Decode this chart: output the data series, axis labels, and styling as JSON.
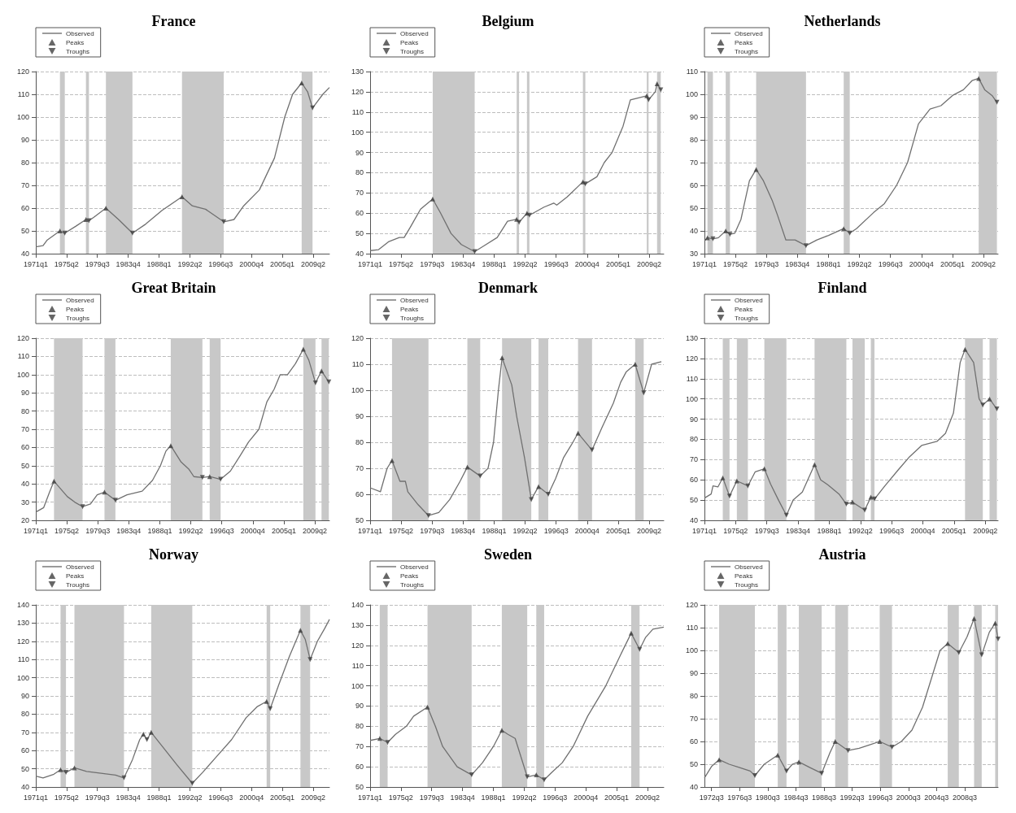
{
  "chart_data": [
    {
      "type": "line",
      "title": "France",
      "xlim": [
        "1971-01",
        "2011-07"
      ],
      "xticks": [
        {
          "value": "1971-01",
          "label": "1971q1"
        },
        {
          "value": "1975-04",
          "label": "1975q2"
        },
        {
          "value": "1979-07",
          "label": "1979q3"
        },
        {
          "value": "1983-10",
          "label": "1983q4"
        },
        {
          "value": "1988-01",
          "label": "1988q1"
        },
        {
          "value": "1992-04",
          "label": "1992q2"
        },
        {
          "value": "1996-07",
          "label": "1996q3"
        },
        {
          "value": "2000-10",
          "label": "2000q4"
        },
        {
          "value": "2005-01",
          "label": "2005q1"
        },
        {
          "value": "2009-04",
          "label": "2009q2"
        }
      ],
      "ylim": [
        40,
        120
      ],
      "yticks": [
        40,
        50,
        60,
        70,
        80,
        90,
        100,
        110,
        120
      ],
      "grid": "y",
      "legend": "top left",
      "bands": [
        {
          "axis": "x",
          "from": "1974-05",
          "to": "1975-01",
          "color": "#c8c8c8"
        },
        {
          "axis": "x",
          "from": "1977-12",
          "to": "1978-05",
          "color": "#c8c8c8"
        },
        {
          "axis": "x",
          "from": "1980-09",
          "to": "1984-05",
          "color": "#c8c8c8"
        },
        {
          "axis": "x",
          "from": "1991-03",
          "to": "1996-12",
          "color": "#c8c8c8"
        },
        {
          "axis": "x",
          "from": "2007-09",
          "to": "2009-03",
          "color": "#c8c8c8"
        }
      ],
      "series": [
        {
          "name": "Observed",
          "marker": "none",
          "color": "#707070",
          "x": [
            "1971-01",
            "1972-01",
            "1972-08",
            "1974-05",
            "1975-01",
            "1976-07",
            "1977-12",
            "1978-05",
            "1979-01",
            "1980-09",
            "1982-06",
            "1984-05",
            "1986-03",
            "1988-06",
            "1991-03",
            "1992-08",
            "1994-06",
            "1996-12",
            "1998-05",
            "1999-09",
            "2001-11",
            "2003-12",
            "2005-05",
            "2006-06",
            "2007-09",
            "2008-07",
            "2009-03",
            "2010-08",
            "2011-07"
          ],
          "values": [
            43,
            43.5,
            46,
            50,
            49,
            52,
            55,
            54.5,
            56,
            60,
            55,
            49,
            53,
            59,
            65,
            61,
            59.5,
            54,
            55,
            61,
            68,
            82,
            100,
            110,
            115,
            111,
            104,
            110,
            113
          ]
        },
        {
          "name": "Peaks",
          "type": "scatter",
          "marker": "triangle",
          "color": "#404040",
          "x": [
            "1974-05",
            "1977-12",
            "1980-09",
            "1991-03",
            "2007-09"
          ],
          "values": [
            50,
            55,
            60,
            65,
            115
          ]
        },
        {
          "name": "Troughs",
          "type": "scatter",
          "marker": "triangle-down",
          "color": "#404040",
          "x": [
            "1975-01",
            "1978-05",
            "1984-05",
            "1996-12",
            "2009-03"
          ],
          "values": [
            49,
            54.5,
            49,
            54,
            104
          ]
        }
      ]
    },
    {
      "type": "line",
      "title": "Belgium",
      "xlim": [
        "1971-01",
        "2011-04"
      ],
      "xticks": [
        {
          "value": "1971-01",
          "label": "1971q1"
        },
        {
          "value": "1975-04",
          "label": "1975q2"
        },
        {
          "value": "1979-07",
          "label": "1979q3"
        },
        {
          "value": "1983-10",
          "label": "1983q4"
        },
        {
          "value": "1988-01",
          "label": "1988q1"
        },
        {
          "value": "1992-04",
          "label": "1992q2"
        },
        {
          "value": "1996-07",
          "label": "1996q3"
        },
        {
          "value": "2000-10",
          "label": "2000q4"
        },
        {
          "value": "2005-01",
          "label": "2005q1"
        },
        {
          "value": "2009-04",
          "label": "2009q2"
        }
      ],
      "ylim": [
        40,
        130
      ],
      "yticks": [
        40,
        50,
        60,
        70,
        80,
        90,
        100,
        110,
        120,
        130
      ],
      "grid": "y",
      "legend": "top left",
      "bands": [
        {
          "axis": "x",
          "from": "1979-08",
          "to": "1985-05",
          "color": "#c8c8c8"
        },
        {
          "axis": "x",
          "from": "1991-02",
          "to": "1991-06",
          "color": "#c8c8c8"
        },
        {
          "axis": "x",
          "from": "1992-07",
          "to": "1992-11",
          "color": "#c8c8c8"
        },
        {
          "axis": "x",
          "from": "2000-03",
          "to": "2000-07",
          "color": "#c8c8c8"
        },
        {
          "axis": "x",
          "from": "2008-12",
          "to": "2009-03",
          "color": "#c8c8c8"
        },
        {
          "axis": "x",
          "from": "2010-05",
          "to": "2010-11",
          "color": "#c8c8c8"
        }
      ],
      "series": [
        {
          "name": "Observed",
          "marker": "none",
          "color": "#707070",
          "x": [
            "1971-01",
            "1972-03",
            "1973-08",
            "1975-01",
            "1975-09",
            "1976-07",
            "1977-12",
            "1979-08",
            "1980-09",
            "1982-02",
            "1983-07",
            "1985-05",
            "1986-09",
            "1988-06",
            "1989-11",
            "1991-02",
            "1991-06",
            "1992-07",
            "1992-11",
            "1994-11",
            "1996-03",
            "1996-08",
            "1998-01",
            "2000-03",
            "2000-07",
            "2002-02",
            "2003-02",
            "2004-03",
            "2005-09",
            "2006-09",
            "2008-12",
            "2009-03",
            "2010-02",
            "2010-05",
            "2010-11"
          ],
          "values": [
            41.5,
            42,
            46,
            48,
            48,
            53,
            62,
            67,
            60,
            50,
            44.5,
            41,
            44,
            48,
            56,
            57,
            55.5,
            60,
            59,
            63,
            65,
            64,
            68,
            75.5,
            74.5,
            78,
            85,
            90,
            103,
            116,
            118,
            116,
            120,
            124,
            121
          ]
        },
        {
          "name": "Peaks",
          "type": "scatter",
          "marker": "triangle",
          "color": "#404040",
          "x": [
            "1979-08",
            "1991-02",
            "1992-07",
            "2000-03",
            "2008-12",
            "2010-05"
          ],
          "values": [
            67,
            57,
            60,
            75.5,
            118,
            124
          ]
        },
        {
          "name": "Troughs",
          "type": "scatter",
          "marker": "triangle-down",
          "color": "#404040",
          "x": [
            "1985-05",
            "1991-06",
            "1992-11",
            "2000-07",
            "2009-03",
            "2010-11"
          ],
          "values": [
            41,
            55.5,
            59,
            74.5,
            116,
            121
          ]
        }
      ]
    },
    {
      "type": "line",
      "title": "Netherlands",
      "xlim": [
        "1971-01",
        "2011-04"
      ],
      "xticks": [
        {
          "value": "1971-01",
          "label": "1971q1"
        },
        {
          "value": "1975-04",
          "label": "1975q2"
        },
        {
          "value": "1979-07",
          "label": "1979q3"
        },
        {
          "value": "1983-10",
          "label": "1983q4"
        },
        {
          "value": "1988-01",
          "label": "1988q1"
        },
        {
          "value": "1992-04",
          "label": "1992q2"
        },
        {
          "value": "1996-07",
          "label": "1996q3"
        },
        {
          "value": "2000-10",
          "label": "2000q4"
        },
        {
          "value": "2005-01",
          "label": "2005q1"
        },
        {
          "value": "2009-04",
          "label": "2009q2"
        }
      ],
      "ylim": [
        30,
        110
      ],
      "yticks": [
        30,
        40,
        50,
        60,
        70,
        80,
        90,
        100,
        110
      ],
      "grid": "y",
      "legend": "top left",
      "bands": [
        {
          "axis": "x",
          "from": "1971-06",
          "to": "1972-03",
          "color": "#c8c8c8"
        },
        {
          "axis": "x",
          "from": "1973-12",
          "to": "1974-07",
          "color": "#c8c8c8"
        },
        {
          "axis": "x",
          "from": "1978-02",
          "to": "1984-12",
          "color": "#c8c8c8"
        },
        {
          "axis": "x",
          "from": "1990-02",
          "to": "1990-12",
          "color": "#c8c8c8"
        },
        {
          "axis": "x",
          "from": "2008-08",
          "to": "2011-02",
          "color": "#c8c8c8"
        }
      ],
      "series": [
        {
          "name": "Observed",
          "marker": "none",
          "color": "#707070",
          "x": [
            "1971-01",
            "1971-06",
            "1972-03",
            "1972-12",
            "1973-12",
            "1974-07",
            "1975-03",
            "1976-01",
            "1977-03",
            "1978-02",
            "1979-02",
            "1980-05",
            "1981-01",
            "1982-03",
            "1983-06",
            "1984-12",
            "1986-06",
            "1988-01",
            "1990-02",
            "1990-12",
            "1991-11",
            "1994-03",
            "1995-09",
            "1997-05",
            "1998-11",
            "2000-05",
            "2001-12",
            "2003-06",
            "2005-01",
            "2006-07",
            "2007-09",
            "2008-08",
            "2009-06",
            "2010-06",
            "2011-02"
          ],
          "values": [
            35.5,
            37,
            36.5,
            37,
            40,
            38.5,
            39,
            45,
            62,
            67,
            62,
            53,
            47,
            36,
            36,
            33.5,
            36,
            38,
            41,
            39,
            41,
            48,
            52,
            60,
            70,
            87,
            93.5,
            95,
            99.5,
            102,
            106,
            107,
            102,
            99.5,
            96.5
          ]
        },
        {
          "name": "Peaks",
          "type": "scatter",
          "marker": "triangle",
          "color": "#404040",
          "x": [
            "1971-06",
            "1973-12",
            "1978-02",
            "1990-02",
            "2008-08"
          ],
          "values": [
            37,
            40,
            67,
            41,
            107
          ]
        },
        {
          "name": "Troughs",
          "type": "scatter",
          "marker": "triangle-down",
          "color": "#404040",
          "x": [
            "1972-03",
            "1974-07",
            "1984-12",
            "1990-12",
            "2011-02"
          ],
          "values": [
            36.5,
            38.5,
            33.5,
            39,
            96.5
          ]
        }
      ]
    },
    {
      "type": "line",
      "title": "Great Britain",
      "xlim": [
        "1971-01",
        "2011-04"
      ],
      "xticks": [
        {
          "value": "1971-01",
          "label": "1971q1"
        },
        {
          "value": "1975-04",
          "label": "1975q2"
        },
        {
          "value": "1979-07",
          "label": "1979q3"
        },
        {
          "value": "1983-10",
          "label": "1983q4"
        },
        {
          "value": "1988-01",
          "label": "1988q1"
        },
        {
          "value": "1992-04",
          "label": "1992q2"
        },
        {
          "value": "1996-07",
          "label": "1996q3"
        },
        {
          "value": "2000-10",
          "label": "2000q4"
        },
        {
          "value": "2005-01",
          "label": "2005q1"
        },
        {
          "value": "2009-04",
          "label": "2009q2"
        }
      ],
      "ylim": [
        20,
        120
      ],
      "yticks": [
        20,
        30,
        40,
        50,
        60,
        70,
        80,
        90,
        100,
        110,
        120
      ],
      "grid": "y",
      "legend": "top left",
      "bands": [
        {
          "axis": "x",
          "from": "1973-07",
          "to": "1977-06",
          "color": "#c8c8c8"
        },
        {
          "axis": "x",
          "from": "1980-06",
          "to": "1981-12",
          "color": "#c8c8c8"
        },
        {
          "axis": "x",
          "from": "1989-07",
          "to": "1993-11",
          "color": "#c8c8c8"
        },
        {
          "axis": "x",
          "from": "1994-11",
          "to": "1996-05",
          "color": "#c8c8c8"
        },
        {
          "axis": "x",
          "from": "2007-09",
          "to": "2009-05",
          "color": "#c8c8c8"
        },
        {
          "axis": "x",
          "from": "2010-03",
          "to": "2011-03",
          "color": "#c8c8c8"
        }
      ],
      "series": [
        {
          "name": "Observed",
          "marker": "none",
          "color": "#707070",
          "x": [
            "1971-01",
            "1972-02",
            "1972-11",
            "1973-07",
            "1975-05",
            "1976-05",
            "1977-06",
            "1978-07",
            "1979-06",
            "1980-06",
            "1981-12",
            "1983-07",
            "1985-08",
            "1987-01",
            "1988-02",
            "1988-11",
            "1989-07",
            "1990-12",
            "1992-01",
            "1992-09",
            "1993-11",
            "1994-11",
            "1996-05",
            "1997-09",
            "1999-02",
            "2000-03",
            "2001-08",
            "2002-09",
            "2003-09",
            "2004-07",
            "2005-07",
            "2006-08",
            "2007-09",
            "2008-06",
            "2009-05",
            "2010-03",
            "2011-03"
          ],
          "values": [
            24.5,
            27,
            35,
            41.5,
            33,
            30,
            27.5,
            29,
            34,
            35.5,
            31,
            34,
            36,
            42,
            50,
            58,
            61,
            52,
            48,
            44,
            43.5,
            44,
            42.5,
            47,
            56,
            63,
            70,
            85,
            92,
            100,
            100,
            106,
            114,
            108,
            95.5,
            102,
            96
          ]
        },
        {
          "name": "Peaks",
          "type": "scatter",
          "marker": "triangle",
          "color": "#404040",
          "x": [
            "1973-07",
            "1980-06",
            "1989-07",
            "1994-11",
            "2007-09",
            "2010-03"
          ],
          "values": [
            41.5,
            35.5,
            61,
            44,
            114,
            102
          ]
        },
        {
          "name": "Troughs",
          "type": "scatter",
          "marker": "triangle-down",
          "color": "#404040",
          "x": [
            "1977-06",
            "1981-12",
            "1993-11",
            "1996-05",
            "2009-05",
            "2011-03"
          ],
          "values": [
            27.5,
            31,
            43.5,
            42.5,
            95.5,
            96
          ]
        }
      ]
    },
    {
      "type": "line",
      "title": "Denmark",
      "xlim": [
        "1971-01",
        "2011-04"
      ],
      "xticks": [
        {
          "value": "1971-01",
          "label": "1971q1"
        },
        {
          "value": "1975-04",
          "label": "1975q2"
        },
        {
          "value": "1979-07",
          "label": "1979q3"
        },
        {
          "value": "1983-10",
          "label": "1983q4"
        },
        {
          "value": "1988-01",
          "label": "1988q1"
        },
        {
          "value": "1992-04",
          "label": "1992q2"
        },
        {
          "value": "1996-07",
          "label": "1996q3"
        },
        {
          "value": "2000-10",
          "label": "2000q4"
        },
        {
          "value": "2005-01",
          "label": "2005q1"
        },
        {
          "value": "2009-04",
          "label": "2009q2"
        }
      ],
      "ylim": [
        50,
        120
      ],
      "yticks": [
        50,
        60,
        70,
        80,
        90,
        100,
        110,
        120
      ],
      "grid": "y",
      "legend": "top left",
      "bands": [
        {
          "axis": "x",
          "from": "1974-01",
          "to": "1979-01",
          "color": "#c8c8c8"
        },
        {
          "axis": "x",
          "from": "1984-05",
          "to": "1986-02",
          "color": "#c8c8c8"
        },
        {
          "axis": "x",
          "from": "1989-02",
          "to": "1993-02",
          "color": "#c8c8c8"
        },
        {
          "axis": "x",
          "from": "1994-02",
          "to": "1995-06",
          "color": "#c8c8c8"
        },
        {
          "axis": "x",
          "from": "1999-07",
          "to": "2001-06",
          "color": "#c8c8c8"
        },
        {
          "axis": "x",
          "from": "2007-05",
          "to": "2008-07",
          "color": "#c8c8c8"
        }
      ],
      "series": [
        {
          "name": "Observed",
          "marker": "none",
          "color": "#707070",
          "x": [
            "1971-01",
            "1972-06",
            "1973-05",
            "1974-01",
            "1975-02",
            "1975-11",
            "1976-03",
            "1977-08",
            "1979-01",
            "1980-06",
            "1981-12",
            "1983-05",
            "1984-05",
            "1986-02",
            "1987-03",
            "1987-12",
            "1988-08",
            "1989-02",
            "1990-06",
            "1991-02",
            "1992-03",
            "1993-02",
            "1994-02",
            "1995-06",
            "1996-06",
            "1997-07",
            "1998-08",
            "1999-07",
            "2001-06",
            "2002-11",
            "2004-05",
            "2005-05",
            "2006-02",
            "2007-05",
            "2008-07",
            "2009-08",
            "2010-12"
          ],
          "values": [
            62.5,
            61,
            70,
            73,
            65,
            65,
            61,
            56,
            51.8,
            53,
            58,
            65,
            70.5,
            67,
            70,
            80,
            100,
            112.5,
            102,
            90,
            74,
            58,
            63,
            60,
            66,
            74,
            79,
            83.5,
            77,
            86,
            95,
            103,
            107,
            110,
            99,
            110,
            111
          ]
        },
        {
          "name": "Peaks",
          "type": "scatter",
          "marker": "triangle",
          "color": "#404040",
          "x": [
            "1974-01",
            "1984-05",
            "1989-02",
            "1994-02",
            "1999-07",
            "2007-05"
          ],
          "values": [
            73,
            70.5,
            112.5,
            63,
            83.5,
            110
          ]
        },
        {
          "name": "Troughs",
          "type": "scatter",
          "marker": "triangle-down",
          "color": "#404040",
          "x": [
            "1979-01",
            "1986-02",
            "1993-02",
            "1995-06",
            "2001-06",
            "2008-07"
          ],
          "values": [
            51.8,
            67,
            58,
            60,
            77,
            99
          ]
        }
      ]
    },
    {
      "type": "line",
      "title": "Finland",
      "xlim": [
        "1971-01",
        "2011-01"
      ],
      "xticks": [
        {
          "value": "1971-01",
          "label": "1971q1"
        },
        {
          "value": "1975-04",
          "label": "1975q2"
        },
        {
          "value": "1979-07",
          "label": "1979q3"
        },
        {
          "value": "1983-10",
          "label": "1983q4"
        },
        {
          "value": "1988-01",
          "label": "1988q1"
        },
        {
          "value": "1992-04",
          "label": "1992q2"
        },
        {
          "value": "1996-07",
          "label": "1996q3"
        },
        {
          "value": "2000-10",
          "label": "2000q4"
        },
        {
          "value": "2005-01",
          "label": "2005q1"
        },
        {
          "value": "2009-04",
          "label": "2009q2"
        }
      ],
      "ylim": [
        40,
        130
      ],
      "yticks": [
        40,
        50,
        60,
        70,
        80,
        90,
        100,
        110,
        120,
        130
      ],
      "grid": "y",
      "legend": "top left",
      "bands": [
        {
          "axis": "x",
          "from": "1973-07",
          "to": "1974-06",
          "color": "#c8c8c8"
        },
        {
          "axis": "x",
          "from": "1975-06",
          "to": "1976-12",
          "color": "#c8c8c8"
        },
        {
          "axis": "x",
          "from": "1979-03",
          "to": "1982-03",
          "color": "#c8c8c8"
        },
        {
          "axis": "x",
          "from": "1986-01",
          "to": "1990-05",
          "color": "#c8c8c8"
        },
        {
          "axis": "x",
          "from": "1991-03",
          "to": "1992-11",
          "color": "#c8c8c8"
        },
        {
          "axis": "x",
          "from": "1993-09",
          "to": "1994-03",
          "color": "#c8c8c8"
        },
        {
          "axis": "x",
          "from": "2006-07",
          "to": "2008-12",
          "color": "#c8c8c8"
        },
        {
          "axis": "x",
          "from": "2009-11",
          "to": "2010-11",
          "color": "#c8c8c8"
        }
      ],
      "series": [
        {
          "name": "Observed",
          "marker": "none",
          "color": "#707070",
          "x": [
            "1971-01",
            "1971-12",
            "1972-03",
            "1972-11",
            "1973-07",
            "1974-06",
            "1975-06",
            "1976-12",
            "1977-12",
            "1979-03",
            "1980-01",
            "1981-02",
            "1982-03",
            "1983-02",
            "1984-05",
            "1986-01",
            "1986-11",
            "1987-11",
            "1989-05",
            "1990-05",
            "1991-03",
            "1992-11",
            "1993-09",
            "1994-03",
            "1995-08",
            "1997-06",
            "1998-11",
            "2000-08",
            "2002-09",
            "2003-11",
            "2004-12",
            "2005-11",
            "2006-07",
            "2007-09",
            "2008-06",
            "2008-12",
            "2009-11",
            "2010-11"
          ],
          "values": [
            51,
            53,
            57,
            56.5,
            61,
            52,
            59.5,
            57,
            64,
            65.5,
            58,
            50,
            42.5,
            50,
            54,
            67.5,
            60,
            57.5,
            53,
            48,
            49,
            45,
            51.5,
            50.5,
            57,
            65,
            71,
            77,
            79,
            83,
            93,
            118,
            124.5,
            118,
            100,
            97,
            100,
            95
          ]
        },
        {
          "name": "Peaks",
          "type": "scatter",
          "marker": "triangle",
          "color": "#404040",
          "x": [
            "1973-07",
            "1975-06",
            "1979-03",
            "1986-01",
            "1991-03",
            "1993-09",
            "2006-07",
            "2009-11"
          ],
          "values": [
            61,
            59.5,
            65.5,
            67.5,
            49,
            51.5,
            124.5,
            100
          ]
        },
        {
          "name": "Troughs",
          "type": "scatter",
          "marker": "triangle-down",
          "color": "#404040",
          "x": [
            "1974-06",
            "1976-12",
            "1982-03",
            "1990-05",
            "1992-11",
            "1994-03",
            "2008-12",
            "2010-11"
          ],
          "values": [
            52,
            57,
            42.5,
            48,
            45,
            50.5,
            97,
            95
          ]
        }
      ]
    },
    {
      "type": "line",
      "title": "Norway",
      "xlim": [
        "1971-01",
        "2011-07"
      ],
      "xticks": [
        {
          "value": "1971-01",
          "label": "1971q1"
        },
        {
          "value": "1975-04",
          "label": "1975q2"
        },
        {
          "value": "1979-07",
          "label": "1979q3"
        },
        {
          "value": "1983-10",
          "label": "1983q4"
        },
        {
          "value": "1988-01",
          "label": "1988q1"
        },
        {
          "value": "1992-04",
          "label": "1992q2"
        },
        {
          "value": "1996-07",
          "label": "1996q3"
        },
        {
          "value": "2000-10",
          "label": "2000q4"
        },
        {
          "value": "2005-01",
          "label": "2005q1"
        },
        {
          "value": "2009-04",
          "label": "2009q2"
        }
      ],
      "ylim": [
        40,
        140
      ],
      "yticks": [
        40,
        50,
        60,
        70,
        80,
        90,
        100,
        110,
        120,
        130,
        140
      ],
      "grid": "y",
      "legend": "top left",
      "bands": [
        {
          "axis": "x",
          "from": "1974-06",
          "to": "1975-03",
          "color": "#c8c8c8"
        },
        {
          "axis": "x",
          "from": "1976-05",
          "to": "1983-03",
          "color": "#c8c8c8"
        },
        {
          "axis": "x",
          "from": "1986-12",
          "to": "1992-08",
          "color": "#c8c8c8"
        },
        {
          "axis": "x",
          "from": "2002-11",
          "to": "2003-05",
          "color": "#c8c8c8"
        },
        {
          "axis": "x",
          "from": "2007-07",
          "to": "2008-11",
          "color": "#c8c8c8"
        }
      ],
      "series": [
        {
          "name": "Observed",
          "marker": "none",
          "color": "#707070",
          "x": [
            "1971-01",
            "1972-01",
            "1973-07",
            "1974-06",
            "1975-03",
            "1976-05",
            "1978-01",
            "1980-01",
            "1982-01",
            "1983-03",
            "1984-05",
            "1985-05",
            "1985-11",
            "1986-05",
            "1986-12",
            "1988-07",
            "1990-07",
            "1992-08",
            "1994-01",
            "1996-01",
            "1998-01",
            "2000-01",
            "2001-07",
            "2002-11",
            "2003-05",
            "2004-07",
            "2006-01",
            "2007-07",
            "2008-03",
            "2008-11",
            "2009-11",
            "2010-11",
            "2011-07"
          ],
          "values": [
            46,
            45,
            47,
            49.5,
            48,
            50.5,
            48.5,
            47.5,
            46.5,
            45,
            55,
            66,
            69,
            66,
            70,
            62,
            52,
            42,
            48,
            57,
            66,
            78,
            84,
            87,
            83,
            96,
            112,
            126,
            121,
            110,
            120,
            127,
            132
          ]
        },
        {
          "name": "Peaks",
          "type": "scatter",
          "marker": "triangle",
          "color": "#404040",
          "x": [
            "1974-06",
            "1976-05",
            "1985-11",
            "1986-12",
            "2002-11",
            "2007-07"
          ],
          "values": [
            49.5,
            50.5,
            69,
            70,
            87,
            126
          ]
        },
        {
          "name": "Troughs",
          "type": "scatter",
          "marker": "triangle-down",
          "color": "#404040",
          "x": [
            "1975-03",
            "1983-03",
            "1986-05",
            "1992-08",
            "2003-05",
            "2008-11"
          ],
          "values": [
            48,
            45,
            66,
            42,
            83,
            110
          ]
        }
      ]
    },
    {
      "type": "line",
      "title": "Sweden",
      "xlim": [
        "1971-01",
        "2011-07"
      ],
      "xticks": [
        {
          "value": "1971-01",
          "label": "1971q1"
        },
        {
          "value": "1975-04",
          "label": "1975q2"
        },
        {
          "value": "1979-07",
          "label": "1979q3"
        },
        {
          "value": "1983-10",
          "label": "1983q4"
        },
        {
          "value": "1988-01",
          "label": "1988q1"
        },
        {
          "value": "1992-04",
          "label": "1992q2"
        },
        {
          "value": "1996-07",
          "label": "1996q3"
        },
        {
          "value": "2000-10",
          "label": "2000q4"
        },
        {
          "value": "2005-01",
          "label": "2005q1"
        },
        {
          "value": "2009-04",
          "label": "2009q2"
        }
      ],
      "ylim": [
        50,
        140
      ],
      "yticks": [
        50,
        60,
        70,
        80,
        90,
        100,
        110,
        120,
        130,
        140
      ],
      "grid": "y",
      "legend": "top left",
      "bands": [
        {
          "axis": "x",
          "from": "1972-05",
          "to": "1973-06",
          "color": "#c8c8c8"
        },
        {
          "axis": "x",
          "from": "1978-12",
          "to": "1985-01",
          "color": "#c8c8c8"
        },
        {
          "axis": "x",
          "from": "1989-03",
          "to": "1992-09",
          "color": "#c8c8c8"
        },
        {
          "axis": "x",
          "from": "1993-12",
          "to": "1995-01",
          "color": "#c8c8c8"
        },
        {
          "axis": "x",
          "from": "2007-01",
          "to": "2008-03",
          "color": "#c8c8c8"
        }
      ],
      "series": [
        {
          "name": "Observed",
          "marker": "none",
          "color": "#707070",
          "x": [
            "1971-01",
            "1972-05",
            "1973-06",
            "1974-07",
            "1976-01",
            "1977-01",
            "1978-12",
            "1980-01",
            "1981-01",
            "1982-01",
            "1983-01",
            "1985-01",
            "1986-07",
            "1988-01",
            "1989-03",
            "1990-01",
            "1991-01",
            "1992-09",
            "1993-12",
            "1995-01",
            "1996-01",
            "1997-07",
            "1999-01",
            "2001-01",
            "2003-07",
            "2005-07",
            "2007-01",
            "2008-03",
            "2009-01",
            "2010-01",
            "2011-07"
          ],
          "values": [
            73,
            74,
            72,
            76,
            80,
            85,
            89.5,
            80,
            70,
            65,
            60,
            56,
            62,
            70,
            78,
            76,
            74,
            55,
            56,
            53.5,
            57,
            62,
            70,
            85,
            100,
            115,
            126,
            118,
            124,
            128,
            129
          ]
        },
        {
          "name": "Peaks",
          "type": "scatter",
          "marker": "triangle",
          "color": "#404040",
          "x": [
            "1972-05",
            "1978-12",
            "1989-03",
            "1993-12",
            "2007-01"
          ],
          "values": [
            74,
            89.5,
            78,
            56,
            126
          ]
        },
        {
          "name": "Troughs",
          "type": "scatter",
          "marker": "triangle-down",
          "color": "#404040",
          "x": [
            "1973-06",
            "1985-01",
            "1992-09",
            "1995-01",
            "2008-03"
          ],
          "values": [
            72,
            56,
            55,
            53.5,
            118
          ]
        }
      ]
    },
    {
      "type": "line",
      "title": "Austria",
      "xlim": [
        "1971-07",
        "2013-04"
      ],
      "xticks": [
        {
          "value": "1972-07",
          "label": "1972q3"
        },
        {
          "value": "1976-07",
          "label": "1976q3"
        },
        {
          "value": "1980-07",
          "label": "1980q3"
        },
        {
          "value": "1984-07",
          "label": "1984q3"
        },
        {
          "value": "1988-07",
          "label": "1988q3"
        },
        {
          "value": "1992-07",
          "label": "1992q3"
        },
        {
          "value": "1996-07",
          "label": "1996q3"
        },
        {
          "value": "2000-07",
          "label": "2000q3"
        },
        {
          "value": "2004-07",
          "label": "2004q3"
        },
        {
          "value": "2008-07",
          "label": "2008q3"
        }
      ],
      "ylim": [
        40,
        120
      ],
      "yticks": [
        40,
        50,
        60,
        70,
        80,
        90,
        100,
        110,
        120
      ],
      "grid": "y",
      "legend": "top left",
      "bands": [
        {
          "axis": "x",
          "from": "1973-08",
          "to": "1978-09",
          "color": "#c8c8c8"
        },
        {
          "axis": "x",
          "from": "1981-12",
          "to": "1983-03",
          "color": "#c8c8c8"
        },
        {
          "axis": "x",
          "from": "1984-12",
          "to": "1988-03",
          "color": "#c8c8c8"
        },
        {
          "axis": "x",
          "from": "1990-02",
          "to": "1991-12",
          "color": "#c8c8c8"
        },
        {
          "axis": "x",
          "from": "1996-06",
          "to": "1998-03",
          "color": "#c8c8c8"
        },
        {
          "axis": "x",
          "from": "2006-02",
          "to": "2007-09",
          "color": "#c8c8c8"
        },
        {
          "axis": "x",
          "from": "2009-11",
          "to": "2010-12",
          "color": "#c8c8c8"
        },
        {
          "axis": "x",
          "from": "2012-11",
          "to": "2013-04",
          "color": "#c8c8c8"
        }
      ],
      "series": [
        {
          "name": "Observed",
          "marker": "none",
          "color": "#707070",
          "x": [
            "1971-07",
            "1972-07",
            "1973-08",
            "1975-01",
            "1976-07",
            "1978-01",
            "1978-09",
            "1980-01",
            "1981-12",
            "1983-03",
            "1984-01",
            "1984-12",
            "1986-07",
            "1988-03",
            "1989-05",
            "1990-02",
            "1991-12",
            "1993-07",
            "1995-01",
            "1996-06",
            "1998-03",
            "1999-07",
            "2001-01",
            "2002-07",
            "2004-01",
            "2005-01",
            "2006-02",
            "2007-09",
            "2008-11",
            "2009-11",
            "2010-12",
            "2012-01",
            "2012-11",
            "2013-04"
          ],
          "values": [
            44,
            49,
            52,
            50,
            48.5,
            47,
            45,
            50,
            54,
            47,
            50,
            51,
            48.5,
            46,
            55,
            60,
            56,
            57,
            58.5,
            60,
            57.5,
            60,
            65,
            75,
            90,
            100,
            103,
            99,
            106,
            114,
            98,
            108,
            112,
            105
          ]
        },
        {
          "name": "Peaks",
          "type": "scatter",
          "marker": "triangle",
          "color": "#404040",
          "x": [
            "1973-08",
            "1981-12",
            "1984-12",
            "1990-02",
            "1996-06",
            "2006-02",
            "2009-11",
            "2012-11"
          ],
          "values": [
            52,
            54,
            51,
            60,
            60,
            103,
            114,
            112
          ]
        },
        {
          "name": "Troughs",
          "type": "scatter",
          "marker": "triangle-down",
          "color": "#404040",
          "x": [
            "1978-09",
            "1983-03",
            "1988-03",
            "1991-12",
            "1998-03",
            "2007-09",
            "2010-12",
            "2013-04"
          ],
          "values": [
            45,
            47,
            46,
            56,
            57.5,
            99,
            98,
            105
          ]
        }
      ]
    }
  ]
}
